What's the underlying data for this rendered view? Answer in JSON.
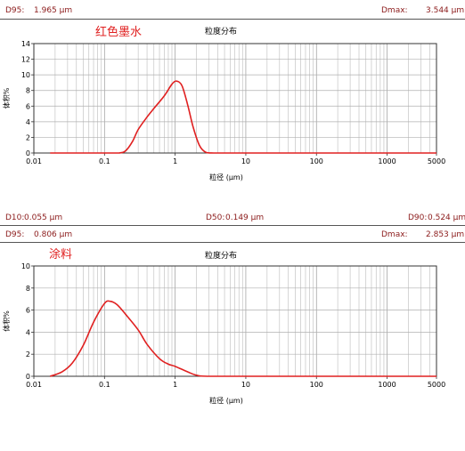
{
  "header1": {
    "d95_label": "D95:",
    "d95_value": "1.965 μm",
    "dmax_label": "Dmax:",
    "dmax_value": "3.544 μm"
  },
  "header2": {
    "d10_label": "D10:",
    "d10_value": "0.055 μm",
    "d50_label": "D50:",
    "d50_value": "0.149 μm",
    "d90_label": "D90:",
    "d90_value": "0.524 μm"
  },
  "header3": {
    "d95_label": "D95:",
    "d95_value": "0.806 μm",
    "dmax_label": "Dmax:",
    "dmax_value": "2.853 μm"
  },
  "colors": {
    "accent": "#8b1a1a",
    "series": "#e02020",
    "sample_label": "#e02020"
  },
  "chart_data": [
    {
      "type": "line",
      "sample_label": "红色墨水",
      "title": "粒度分布",
      "xlabel": "粒径 (μm)",
      "ylabel": "体积%",
      "xscale": "log",
      "xlim": [
        0.01,
        5000
      ],
      "ylim": [
        0,
        14
      ],
      "xticks": [
        "0.01",
        "0.1",
        "1",
        "10",
        "100",
        "1000",
        "5000"
      ],
      "yticks": [
        "0",
        "2",
        "4",
        "6",
        "8",
        "10",
        "12",
        "14"
      ],
      "grid": true,
      "series": [
        {
          "x": [
            0.017,
            0.1,
            0.16,
            0.2,
            0.25,
            0.3,
            0.4,
            0.5,
            0.7,
            0.9,
            1.05,
            1.25,
            1.5,
            1.8,
            2.2,
            2.7,
            3.5,
            10,
            5000
          ],
          "y": [
            0,
            0,
            0,
            0.3,
            1.5,
            3.0,
            4.6,
            5.7,
            7.3,
            8.8,
            9.2,
            8.6,
            6.2,
            3.3,
            1.0,
            0.1,
            0,
            0,
            0
          ]
        }
      ]
    },
    {
      "type": "line",
      "sample_label": "涂料",
      "title": "粒度分布",
      "xlabel": "粒径 (μm)",
      "ylabel": "体积%",
      "xscale": "log",
      "xlim": [
        0.01,
        5000
      ],
      "ylim": [
        0,
        10
      ],
      "xticks": [
        "0.01",
        "0.1",
        "1",
        "10",
        "100",
        "1000",
        "5000"
      ],
      "yticks": [
        "0",
        "2",
        "4",
        "6",
        "8",
        "10"
      ],
      "grid": true,
      "series": [
        {
          "x": [
            0.017,
            0.025,
            0.035,
            0.05,
            0.07,
            0.1,
            0.12,
            0.15,
            0.2,
            0.3,
            0.4,
            0.6,
            0.8,
            1.0,
            1.5,
            2.0,
            2.85,
            10,
            5000
          ],
          "y": [
            0,
            0.4,
            1.2,
            2.8,
            4.9,
            6.6,
            6.8,
            6.5,
            5.6,
            4.2,
            2.9,
            1.6,
            1.1,
            0.9,
            0.4,
            0.1,
            0,
            0,
            0
          ]
        }
      ]
    }
  ]
}
